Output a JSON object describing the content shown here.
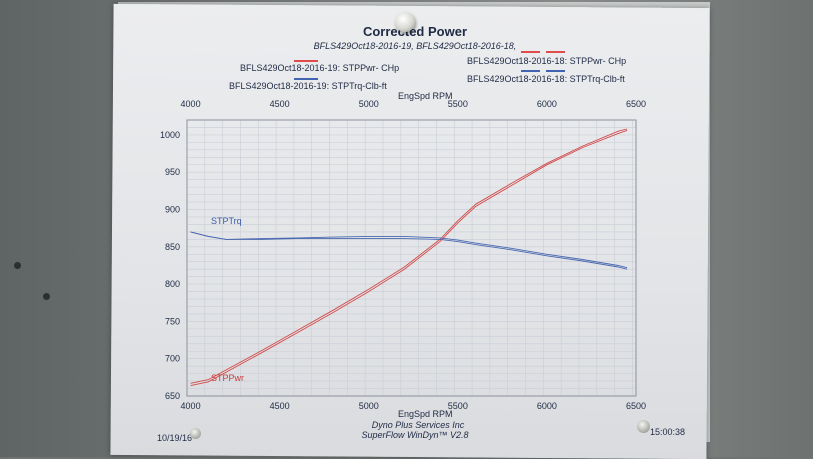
{
  "page": {
    "date": "10/19/16",
    "time": "15:00:38",
    "company": "Dyno Plus Services Inc",
    "software": "SuperFlow WinDyn™ V2.8"
  },
  "legend": {
    "files": "BFLS429Oct18-2016-19, BFLS429Oct18-2016-18,",
    "entries": [
      {
        "label": "BFLS429Oct18-2016-19: STPPwr- CHp",
        "swatches": [
          "#e14b4b"
        ]
      },
      {
        "label": "BFLS429Oct18-2016-19: STPTrq-Clb-ft",
        "swatches": [
          "#4163b0"
        ]
      },
      {
        "label": "BFLS429Oct18-2016-18: STPPwr- CHp",
        "swatches": [
          "#e14b4b",
          "#e14b4b"
        ]
      },
      {
        "label": "BFLS429Oct18-2016-18: STPTrq-Clb-ft",
        "swatches": [
          "#4163b0",
          "#4163b0"
        ]
      }
    ]
  },
  "chart_data": {
    "type": "line",
    "title": "Corrected Power",
    "xlabel": "EngSpd RPM",
    "xlim": [
      3980,
      6500
    ],
    "ylim": [
      650,
      1020
    ],
    "xticks": [
      4000,
      4500,
      5000,
      5500,
      6000,
      6500
    ],
    "yticks": [
      650,
      700,
      750,
      800,
      850,
      900,
      950,
      1000
    ],
    "grid": true,
    "series": [
      {
        "name": "STPPwr",
        "color": "#d24a4a",
        "x": [
          4000,
          4100,
          4200,
          4400,
          4600,
          4800,
          5000,
          5200,
          5400,
          5500,
          5600,
          5800,
          6000,
          6200,
          6400,
          6450
        ],
        "values": [
          667,
          672,
          685,
          711,
          738,
          765,
          793,
          823,
          860,
          885,
          907,
          935,
          962,
          985,
          1005,
          1008
        ]
      },
      {
        "name": "STPPwr",
        "color": "#d24a4a",
        "x": [
          4000,
          4100,
          4200,
          4400,
          4600,
          4800,
          5000,
          5200,
          5400,
          5500,
          5600,
          5800,
          6000,
          6200,
          6400,
          6450
        ],
        "values": [
          664,
          669,
          682,
          708,
          735,
          762,
          790,
          820,
          857,
          882,
          904,
          932,
          960,
          983,
          1002,
          1006
        ]
      },
      {
        "name": "STPTrq",
        "color": "#4a68b0",
        "x": [
          4000,
          4100,
          4200,
          4400,
          4600,
          4800,
          5000,
          5200,
          5400,
          5500,
          5600,
          5800,
          6000,
          6200,
          6400,
          6450
        ],
        "values": [
          870,
          864,
          860,
          861,
          862,
          863,
          864,
          864,
          862,
          859,
          855,
          848,
          840,
          833,
          825,
          822
        ]
      },
      {
        "name": "STPTrq",
        "color": "#4a68b0",
        "x": [
          4000,
          4100,
          4200,
          4400,
          4600,
          4800,
          5000,
          5200,
          5400,
          5500,
          5600,
          5800,
          6000,
          6200,
          6400,
          6450
        ],
        "values": [
          870,
          864,
          860,
          860,
          861,
          861,
          861,
          861,
          860,
          857,
          853,
          846,
          838,
          831,
          823,
          820
        ]
      }
    ]
  }
}
